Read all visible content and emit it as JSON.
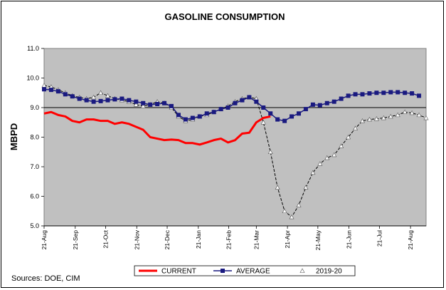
{
  "chart_data": {
    "type": "line",
    "title": "GASOLINE CONSUMPTION",
    "ylabel": "MBPD",
    "xlabel": "",
    "ylim": [
      5.0,
      11.0
    ],
    "yticks": [
      "5.0",
      "6.0",
      "7.0",
      "8.0",
      "9.0",
      "10.0",
      "11.0"
    ],
    "xlim": [
      0,
      54
    ],
    "xticks": [
      {
        "label": "21-Aug",
        "x": 0
      },
      {
        "label": "21-Sep",
        "x": 4.4
      },
      {
        "label": "21-Oct",
        "x": 8.7
      },
      {
        "label": "21-Nov",
        "x": 13.1
      },
      {
        "label": "21-Dec",
        "x": 17.4
      },
      {
        "label": "21-Jan",
        "x": 21.8
      },
      {
        "label": "21-Feb",
        "x": 26.1
      },
      {
        "label": "21-Mar",
        "x": 30.0
      },
      {
        "label": "21-Apr",
        "x": 34.4
      },
      {
        "label": "21-May",
        "x": 38.7
      },
      {
        "label": "21-Jun",
        "x": 43.1
      },
      {
        "label": "21-Jul",
        "x": 47.4
      },
      {
        "label": "21-Aug",
        "x": 51.8
      }
    ],
    "reference_line": 9.0,
    "grid": false,
    "legend_position": "bottom",
    "background_color": "#c0c0c0",
    "series": [
      {
        "name": "CURRENT",
        "color": "#ff0000",
        "marker": "none",
        "x": [
          0,
          1,
          2,
          3,
          4,
          5,
          6,
          7,
          8,
          9,
          10,
          11,
          12,
          13,
          14,
          15,
          16,
          17,
          18,
          19,
          20,
          21,
          22,
          23,
          24,
          25,
          26,
          27,
          28,
          29,
          30,
          31,
          32
        ],
        "values": [
          8.8,
          8.85,
          8.75,
          8.7,
          8.55,
          8.5,
          8.6,
          8.6,
          8.55,
          8.55,
          8.45,
          8.5,
          8.45,
          8.35,
          8.25,
          8.0,
          7.95,
          7.9,
          7.92,
          7.9,
          7.8,
          7.8,
          7.75,
          7.82,
          7.9,
          7.95,
          7.82,
          7.9,
          8.12,
          8.15,
          8.5,
          8.65,
          8.7
        ]
      },
      {
        "name": "AVERAGE",
        "color": "#1a1a80",
        "marker": "square",
        "x": [
          0,
          1,
          2,
          3,
          4,
          5,
          6,
          7,
          8,
          9,
          10,
          11,
          12,
          13,
          14,
          15,
          16,
          17,
          18,
          19,
          20,
          21,
          22,
          23,
          24,
          25,
          26,
          27,
          28,
          29,
          30,
          31,
          32,
          33,
          34,
          35,
          36,
          37,
          38,
          39,
          40,
          41,
          42,
          43,
          44,
          45,
          46,
          47,
          48,
          49,
          50,
          51,
          52,
          53
        ],
        "values": [
          9.62,
          9.6,
          9.55,
          9.45,
          9.38,
          9.3,
          9.25,
          9.2,
          9.22,
          9.25,
          9.28,
          9.3,
          9.25,
          9.2,
          9.15,
          9.1,
          9.12,
          9.15,
          9.05,
          8.75,
          8.6,
          8.65,
          8.7,
          8.8,
          8.85,
          8.95,
          9.0,
          9.15,
          9.25,
          9.35,
          9.2,
          9.0,
          8.8,
          8.6,
          8.55,
          8.7,
          8.8,
          8.95,
          9.1,
          9.08,
          9.15,
          9.2,
          9.3,
          9.4,
          9.45,
          9.45,
          9.48,
          9.5,
          9.5,
          9.52,
          9.52,
          9.5,
          9.48,
          9.4
        ]
      },
      {
        "name": "2019-20",
        "color": "#000000",
        "marker": "triangle",
        "dashed": true,
        "x": [
          0,
          1,
          2,
          3,
          4,
          5,
          6,
          7,
          8,
          9,
          10,
          11,
          12,
          13,
          14,
          15,
          16,
          17,
          18,
          19,
          20,
          21,
          22,
          23,
          24,
          25,
          26,
          27,
          28,
          29,
          30,
          31,
          32,
          33,
          34,
          35,
          36,
          37,
          38,
          39,
          40,
          41,
          42,
          43,
          44,
          45,
          46,
          47,
          48,
          49,
          50,
          51,
          52,
          53,
          54
        ],
        "values": [
          9.75,
          9.7,
          9.6,
          9.5,
          9.4,
          9.35,
          9.3,
          9.35,
          9.5,
          9.4,
          9.3,
          9.25,
          9.2,
          9.1,
          9.05,
          9.1,
          9.2,
          9.15,
          9.0,
          8.7,
          8.55,
          8.6,
          8.7,
          8.75,
          8.85,
          8.95,
          9.05,
          9.2,
          9.3,
          9.35,
          9.3,
          8.5,
          7.5,
          6.3,
          5.5,
          5.3,
          5.7,
          6.3,
          6.8,
          7.1,
          7.3,
          7.4,
          7.7,
          8.0,
          8.3,
          8.55,
          8.6,
          8.62,
          8.65,
          8.7,
          8.75,
          8.85,
          8.82,
          8.75,
          8.65
        ]
      }
    ],
    "source": "Sources:  DOE, CIM"
  }
}
